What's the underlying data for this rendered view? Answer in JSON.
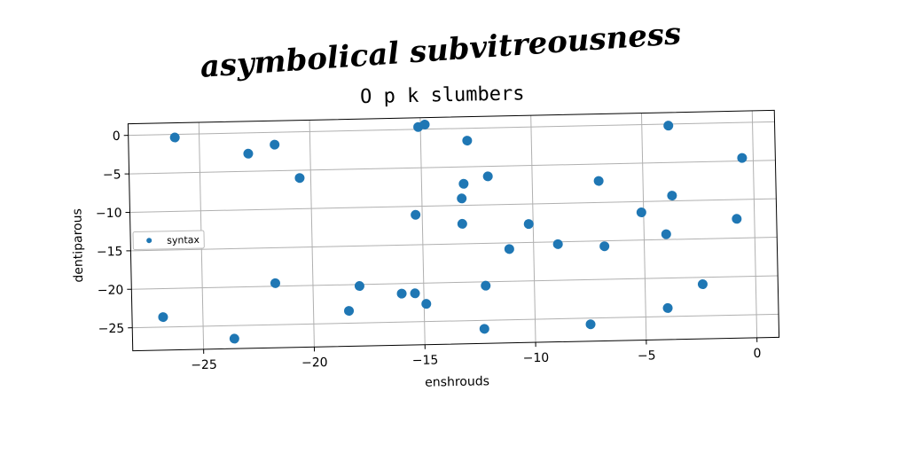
{
  "suptitle": "asymbolical subvitreousness",
  "chart_data": {
    "type": "scatter",
    "title": "O p k slumbers",
    "xlabel": "enshrouds",
    "ylabel": "dentiparous",
    "xlim": [
      -28.2,
      1.0
    ],
    "ylim": [
      -28.0,
      1.5
    ],
    "xticks": [
      -25,
      -20,
      -15,
      -10,
      -5,
      0
    ],
    "yticks": [
      0,
      -5,
      -10,
      -15,
      -20,
      -25
    ],
    "xtick_labels": [
      "−25",
      "−20",
      "−15",
      "−10",
      "−5",
      "0"
    ],
    "ytick_labels": [
      "0",
      "−5",
      "−10",
      "−15",
      "−20",
      "−25"
    ],
    "grid": true,
    "legend": "center-left",
    "color": "#1f77b4",
    "series": [
      {
        "name": "syntax",
        "points": [
          [
            -26.1,
            -0.4
          ],
          [
            -22.8,
            -2.7
          ],
          [
            -21.6,
            -1.6
          ],
          [
            -20.5,
            -6.0
          ],
          [
            -15.1,
            0.3
          ],
          [
            -14.8,
            0.6
          ],
          [
            -12.9,
            -1.6
          ],
          [
            -12.0,
            -6.3
          ],
          [
            -13.1,
            -7.2
          ],
          [
            -13.2,
            -9.1
          ],
          [
            -15.3,
            -11.1
          ],
          [
            -13.2,
            -12.4
          ],
          [
            -10.2,
            -12.6
          ],
          [
            -11.1,
            -15.8
          ],
          [
            -8.9,
            -15.3
          ],
          [
            -6.8,
            -15.7
          ],
          [
            -7.0,
            -7.2
          ],
          [
            -5.1,
            -11.4
          ],
          [
            -4.0,
            -14.3
          ],
          [
            -3.8,
            -0.2
          ],
          [
            -3.7,
            -9.3
          ],
          [
            -0.5,
            -4.6
          ],
          [
            -0.8,
            -12.5
          ],
          [
            -2.4,
            -20.9
          ],
          [
            -4.0,
            -23.9
          ],
          [
            -7.5,
            -25.8
          ],
          [
            -12.3,
            -26.1
          ],
          [
            -12.2,
            -20.5
          ],
          [
            -14.9,
            -22.7
          ],
          [
            -15.4,
            -21.3
          ],
          [
            -16.0,
            -21.3
          ],
          [
            -17.9,
            -20.2
          ],
          [
            -18.4,
            -23.4
          ],
          [
            -21.7,
            -19.6
          ],
          [
            -23.6,
            -26.7
          ],
          [
            -26.8,
            -23.7
          ]
        ]
      }
    ]
  }
}
